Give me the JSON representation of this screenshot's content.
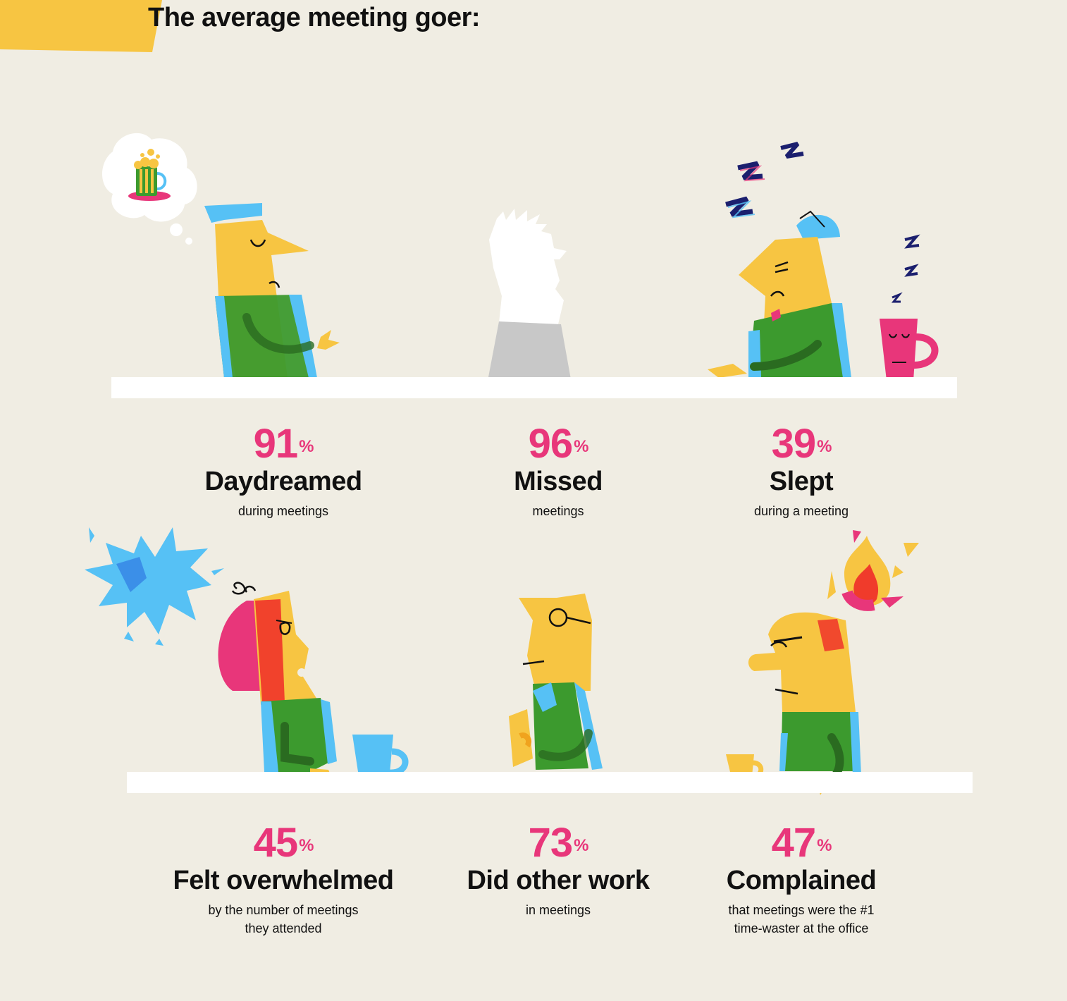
{
  "header": {
    "title": "The average meeting goer:"
  },
  "colors": {
    "background": "#f0ede3",
    "accent_yellow": "#f7c542",
    "stat_pink": "#e8367a",
    "shirt_green": "#3c9a2e",
    "sky_blue": "#56c1f5",
    "table_white": "#ffffff"
  },
  "stats": [
    {
      "value": "91",
      "unit": "%",
      "label": "Daydreamed",
      "desc_line1": "during meetings",
      "desc_line2": "",
      "icon": "daydreaming-person-icon"
    },
    {
      "value": "96",
      "unit": "%",
      "label": "Missed",
      "desc_line1": "meetings",
      "desc_line2": "",
      "icon": "absent-person-icon"
    },
    {
      "value": "39",
      "unit": "%",
      "label": "Slept",
      "desc_line1": "during a meeting",
      "desc_line2": "",
      "icon": "sleeping-person-icon"
    },
    {
      "value": "45",
      "unit": "%",
      "label": "Felt overwhelmed",
      "desc_line1": "by the number of meetings",
      "desc_line2": "they attended",
      "icon": "overwhelmed-person-icon"
    },
    {
      "value": "73",
      "unit": "%",
      "label": "Did other work",
      "desc_line1": "in meetings",
      "desc_line2": "",
      "icon": "working-person-icon"
    },
    {
      "value": "47",
      "unit": "%",
      "label": "Complained",
      "desc_line1": "that meetings were the #1",
      "desc_line2": "time-waster at the office",
      "icon": "complaining-person-icon"
    }
  ]
}
